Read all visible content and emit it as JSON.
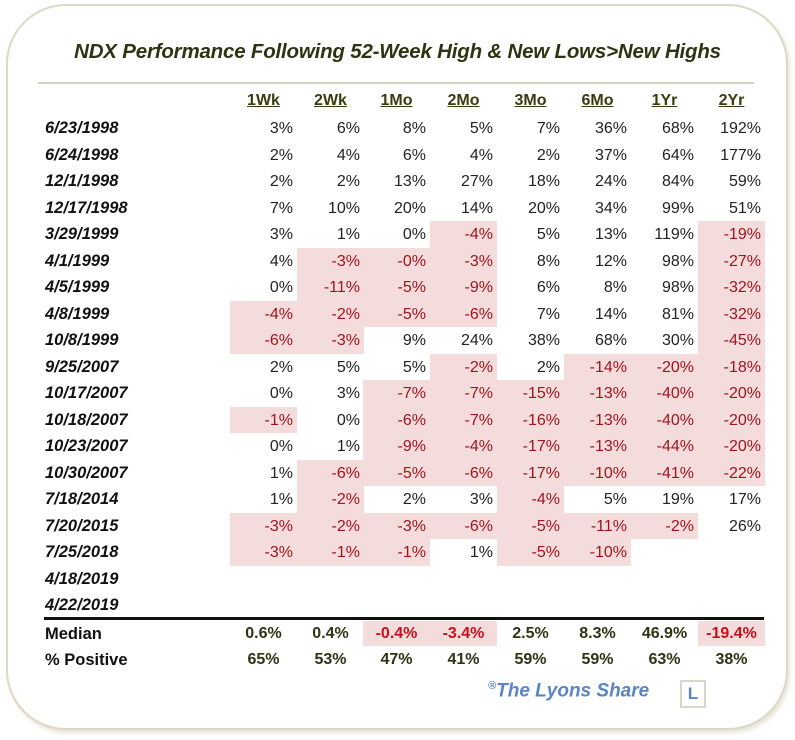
{
  "title": "NDX Performance Following 52-Week High & New Lows>New Highs",
  "chart_data": {
    "type": "table",
    "title": "NDX Performance Following 52-Week High & New Lows>New Highs",
    "columns": [
      "1Wk",
      "2Wk",
      "1Mo",
      "2Mo",
      "3Mo",
      "6Mo",
      "1Yr",
      "2Yr"
    ],
    "rows": [
      {
        "date": "6/23/1998",
        "values": [
          "3%",
          "6%",
          "8%",
          "5%",
          "7%",
          "36%",
          "68%",
          "192%"
        ]
      },
      {
        "date": "6/24/1998",
        "values": [
          "2%",
          "4%",
          "6%",
          "4%",
          "2%",
          "37%",
          "64%",
          "177%"
        ]
      },
      {
        "date": "12/1/1998",
        "values": [
          "2%",
          "2%",
          "13%",
          "27%",
          "18%",
          "24%",
          "84%",
          "59%"
        ]
      },
      {
        "date": "12/17/1998",
        "values": [
          "7%",
          "10%",
          "20%",
          "14%",
          "20%",
          "34%",
          "99%",
          "51%"
        ]
      },
      {
        "date": "3/29/1999",
        "values": [
          "3%",
          "1%",
          "0%",
          "-4%",
          "5%",
          "13%",
          "119%",
          "-19%"
        ]
      },
      {
        "date": "4/1/1999",
        "values": [
          "4%",
          "-3%",
          "-0%",
          "-3%",
          "8%",
          "12%",
          "98%",
          "-27%"
        ]
      },
      {
        "date": "4/5/1999",
        "values": [
          "0%",
          "-11%",
          "-5%",
          "-9%",
          "6%",
          "8%",
          "98%",
          "-32%"
        ]
      },
      {
        "date": "4/8/1999",
        "values": [
          "-4%",
          "-2%",
          "-5%",
          "-6%",
          "7%",
          "14%",
          "81%",
          "-32%"
        ]
      },
      {
        "date": "10/8/1999",
        "values": [
          "-6%",
          "-3%",
          "9%",
          "24%",
          "38%",
          "68%",
          "30%",
          "-45%"
        ]
      },
      {
        "date": "9/25/2007",
        "values": [
          "2%",
          "5%",
          "5%",
          "-2%",
          "2%",
          "-14%",
          "-20%",
          "-18%"
        ]
      },
      {
        "date": "10/17/2007",
        "values": [
          "0%",
          "3%",
          "-7%",
          "-7%",
          "-15%",
          "-13%",
          "-40%",
          "-20%"
        ]
      },
      {
        "date": "10/18/2007",
        "values": [
          "-1%",
          "0%",
          "-6%",
          "-7%",
          "-16%",
          "-13%",
          "-40%",
          "-20%"
        ]
      },
      {
        "date": "10/23/2007",
        "values": [
          "0%",
          "1%",
          "-9%",
          "-4%",
          "-17%",
          "-13%",
          "-44%",
          "-20%"
        ]
      },
      {
        "date": "10/30/2007",
        "values": [
          "1%",
          "-6%",
          "-5%",
          "-6%",
          "-17%",
          "-10%",
          "-41%",
          "-22%"
        ]
      },
      {
        "date": "7/18/2014",
        "values": [
          "1%",
          "-2%",
          "2%",
          "3%",
          "-4%",
          "5%",
          "19%",
          "17%"
        ]
      },
      {
        "date": "7/20/2015",
        "values": [
          "-3%",
          "-2%",
          "-3%",
          "-6%",
          "-5%",
          "-11%",
          "-2%",
          "26%"
        ]
      },
      {
        "date": "7/25/2018",
        "values": [
          "-3%",
          "-1%",
          "-1%",
          "1%",
          "-5%",
          "-10%",
          "",
          ""
        ]
      },
      {
        "date": "4/18/2019",
        "values": [
          "",
          "",
          "",
          "",
          "",
          "",
          "",
          ""
        ]
      },
      {
        "date": "4/22/2019",
        "values": [
          "",
          "",
          "",
          "",
          "",
          "",
          "",
          ""
        ]
      }
    ],
    "summary": [
      {
        "label": "Median",
        "values": [
          "0.6%",
          "0.4%",
          "-0.4%",
          "-3.4%",
          "2.5%",
          "8.3%",
          "46.9%",
          "-19.4%"
        ]
      },
      {
        "label": "% Positive",
        "values": [
          "65%",
          "53%",
          "47%",
          "41%",
          "59%",
          "59%",
          "63%",
          "38%"
        ]
      }
    ],
    "negative_color": "#a0141c",
    "negative_fill": "#f4dcdc"
  },
  "footer": {
    "copyright": "®",
    "brand": "The Lyons Share",
    "logo_letter": "L"
  }
}
